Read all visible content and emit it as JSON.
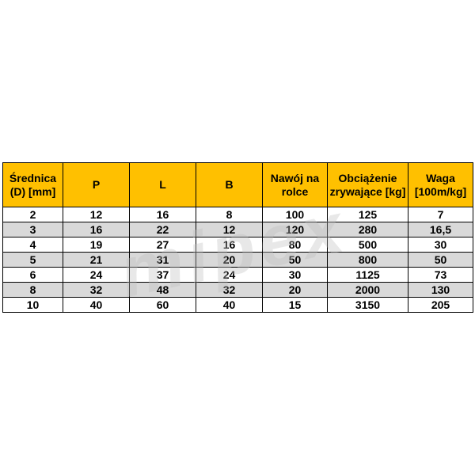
{
  "watermark": "mipex",
  "table": {
    "header": [
      "Średnica (D) [mm]",
      "P",
      "L",
      "B",
      "Nawój na rolce",
      "Obciążenie zrywające [kg]",
      "Waga [100m/kg]"
    ],
    "rows": [
      [
        "2",
        "12",
        "16",
        "8",
        "100",
        "125",
        "7"
      ],
      [
        "3",
        "16",
        "22",
        "12",
        "120",
        "280",
        "16,5"
      ],
      [
        "4",
        "19",
        "27",
        "16",
        "80",
        "500",
        "30"
      ],
      [
        "5",
        "21",
        "31",
        "20",
        "50",
        "800",
        "50"
      ],
      [
        "6",
        "24",
        "37",
        "24",
        "30",
        "1125",
        "73"
      ],
      [
        "8",
        "32",
        "48",
        "32",
        "20",
        "2000",
        "130"
      ],
      [
        "10",
        "40",
        "60",
        "40",
        "15",
        "3150",
        "205"
      ]
    ]
  }
}
